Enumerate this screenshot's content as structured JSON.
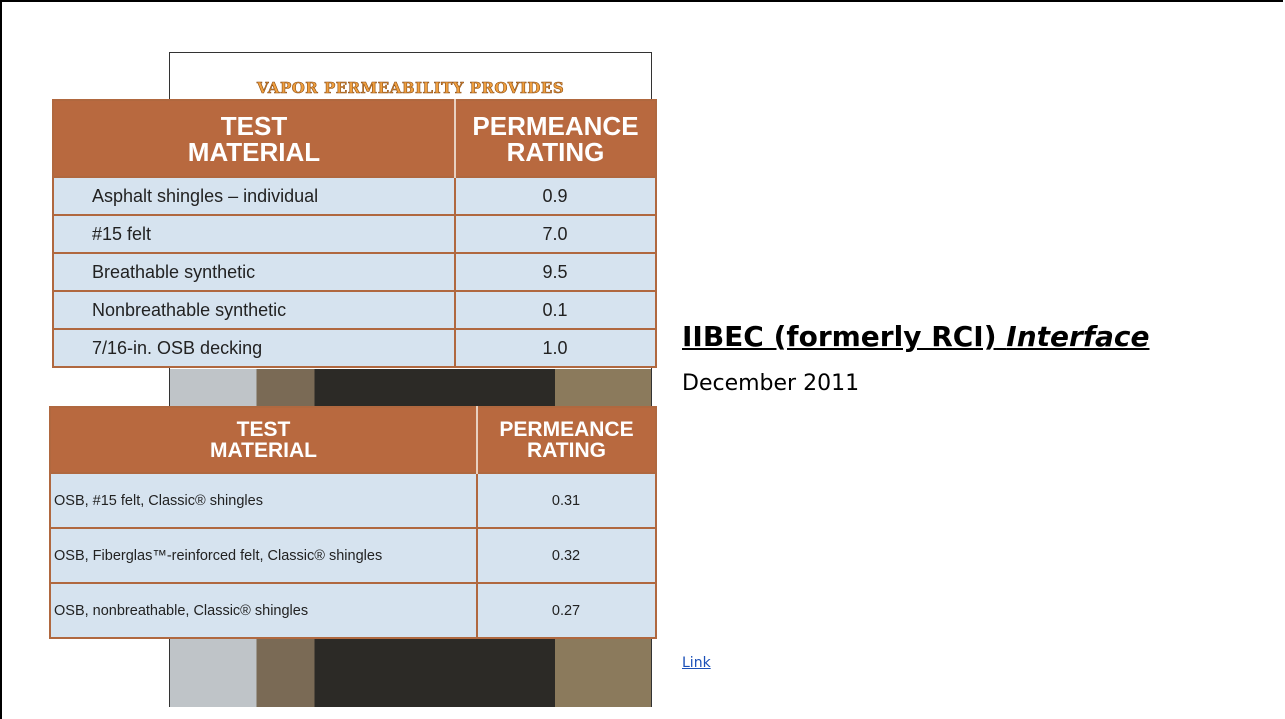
{
  "figure": {
    "caption": "VAPOR PERMEABILITY PROVIDES",
    "table_1": {
      "header": [
        [
          "TEST",
          "MATERIAL"
        ],
        [
          "PERMEANCE",
          "RATING"
        ]
      ],
      "rows": [
        [
          "Asphalt shingles – individual",
          "0.9"
        ],
        [
          "#15 felt",
          "7.0"
        ],
        [
          "Breathable synthetic",
          "9.5"
        ],
        [
          "Nonbreathable synthetic",
          "0.1"
        ],
        [
          "7/16-in. OSB decking",
          "1.0"
        ]
      ]
    },
    "table_2": {
      "header": [
        [
          "TEST",
          "MATERIAL"
        ],
        [
          "PERMEANCE",
          "RATING"
        ]
      ],
      "rows": [
        [
          "OSB, #15 felt, Classic® shingles",
          "0.31"
        ],
        [
          "OSB, Fiberglas™-reinforced felt, Classic® shingles",
          "0.32"
        ],
        [
          "OSB, nonbreathable, Classic® shingles",
          "0.27"
        ]
      ]
    }
  },
  "text": {
    "title": "IIBEC (formerly RCI)",
    "title_italic": "Interface",
    "subtitle": "December 2011",
    "link": "Link"
  }
}
